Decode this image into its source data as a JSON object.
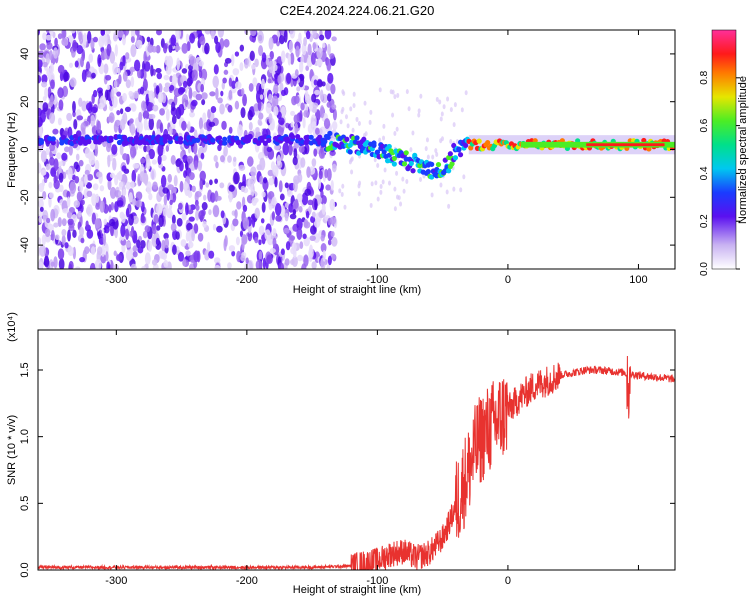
{
  "title": "C2E4.2024.224.06.21.G20",
  "chart_data": [
    {
      "type": "heatmap",
      "xlabel": "Height of straight line (km)",
      "ylabel": "Frequency (Hz)",
      "xlim": [
        -360,
        128
      ],
      "ylim": [
        -50,
        50
      ],
      "xticks": [
        -300,
        -200,
        -100,
        0,
        100
      ],
      "yticks": [
        -40,
        -20,
        0,
        20,
        40
      ],
      "colorbar": {
        "label": "Normalized spectral amplitude",
        "range": [
          0.0,
          1.0
        ],
        "ticks": [
          0.0,
          0.2,
          0.4,
          0.6,
          0.8
        ],
        "colormap": "rainbow (purple → blue → cyan → green → yellow → red → magenta)"
      },
      "ridge": {
        "description": "frequency of peak spectral amplitude vs height",
        "x": [
          -360,
          -300,
          -250,
          -200,
          -150,
          -130,
          -110,
          -90,
          -75,
          -60,
          -50,
          -45,
          -40,
          -30,
          -20,
          -10,
          0,
          50,
          100,
          128
        ],
        "y": [
          4,
          4,
          4,
          4,
          4,
          3,
          1,
          -2,
          -5,
          -8,
          -9,
          -6,
          0,
          2,
          2,
          2,
          2,
          2,
          2,
          2
        ]
      }
    },
    {
      "type": "line",
      "xlabel": "Height of straight line (km)",
      "ylabel": "SNR (10 * v/v)",
      "y_multiplier": "(x10⁴)",
      "xlim": [
        -360,
        128
      ],
      "ylim": [
        0,
        1.8
      ],
      "xticks": [
        -300,
        -200,
        -100,
        0
      ],
      "yticks": [
        0.0,
        0.5,
        1.0,
        1.5
      ],
      "color": "#e8322f",
      "series": [
        {
          "x": [
            -360,
            -300,
            -250,
            -200,
            -150,
            -120,
            -100,
            -90,
            -80,
            -70,
            -60,
            -50,
            -45,
            -40,
            -35,
            -30,
            -25,
            -20,
            -15,
            -10,
            -5,
            0,
            10,
            20,
            30,
            40,
            50,
            60,
            70,
            80,
            90,
            92,
            95,
            100,
            110,
            120,
            128
          ],
          "y": [
            0.02,
            0.02,
            0.02,
            0.02,
            0.02,
            0.03,
            0.07,
            0.12,
            0.14,
            0.09,
            0.13,
            0.24,
            0.35,
            0.48,
            0.62,
            0.75,
            0.9,
            1.0,
            1.05,
            1.1,
            1.15,
            1.2,
            1.3,
            1.38,
            1.42,
            1.46,
            1.48,
            1.5,
            1.5,
            1.49,
            1.48,
            1.45,
            1.47,
            1.46,
            1.45,
            1.44,
            1.43
          ]
        }
      ]
    }
  ]
}
